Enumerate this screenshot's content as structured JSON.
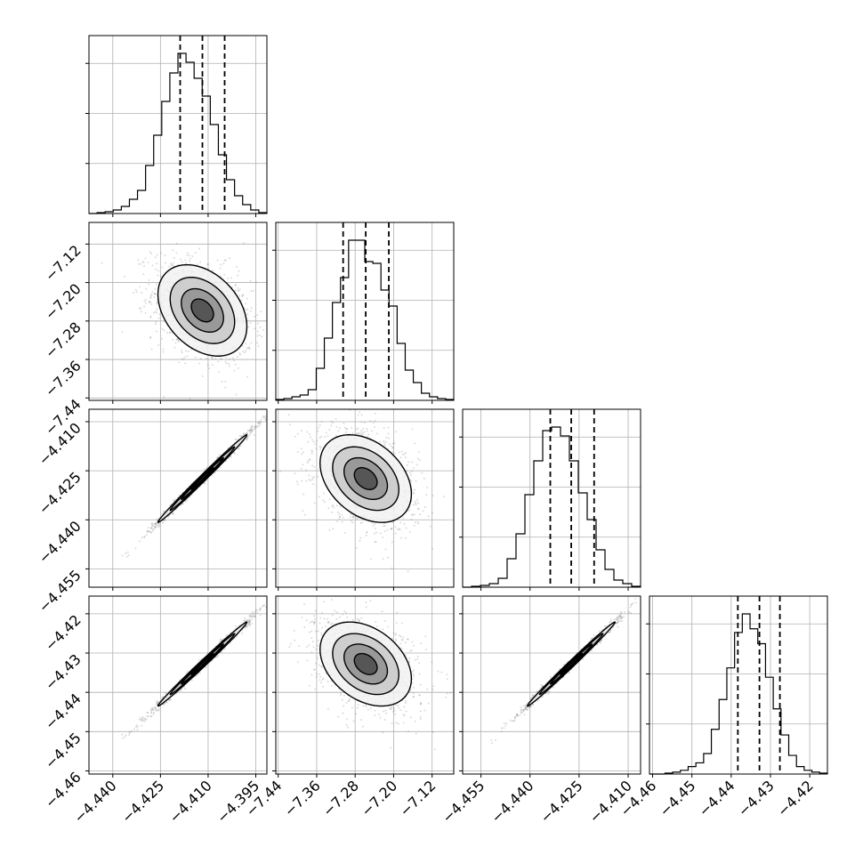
{
  "chart_data": {
    "type": "corner",
    "grid": true,
    "parameters": [
      {
        "ticks": [
          "−4.440",
          "−4.425",
          "−4.410",
          "−4.395"
        ],
        "tick_values": [
          -4.44,
          -4.425,
          -4.41,
          -4.395
        ],
        "range": [
          -4.4475,
          -4.3915
        ],
        "quantiles": [
          -4.4188,
          -4.4118,
          -4.4048
        ],
        "hist": [
          0,
          0.5,
          1,
          2,
          4,
          8,
          13,
          27,
          44,
          63,
          79,
          90,
          85,
          76,
          66,
          50,
          33,
          19,
          10,
          5,
          2,
          0.5
        ]
      },
      {
        "ticks": [
          "−7.44",
          "−7.36",
          "−7.28",
          "−7.20",
          "−7.12"
        ],
        "tick_values": [
          -7.44,
          -7.36,
          -7.28,
          -7.2,
          -7.12
        ],
        "range": [
          -7.445,
          -7.075
        ],
        "quantiles": [
          -7.305,
          -7.258,
          -7.21
        ],
        "hist": [
          0.5,
          1,
          2,
          3,
          6,
          18,
          35,
          55,
          69,
          90,
          90,
          78,
          77,
          62,
          53,
          32,
          17,
          10,
          4,
          2,
          1,
          0.5
        ]
      },
      {
        "ticks": [
          "−4.455",
          "−4.440",
          "−4.425",
          "−4.410"
        ],
        "tick_values": [
          -4.455,
          -4.44,
          -4.425,
          -4.41
        ],
        "range": [
          -4.4606,
          -4.4062
        ],
        "quantiles": [
          -4.4338,
          -4.4274,
          -4.4204
        ],
        "hist": [
          0,
          0.5,
          1,
          2,
          5,
          16,
          30,
          52,
          71,
          88,
          90,
          85,
          71,
          53,
          38,
          21,
          10,
          4,
          2,
          0.5
        ]
      },
      {
        "ticks": [
          "−4.46",
          "−4.45",
          "−4.44",
          "−4.43",
          "−4.42"
        ],
        "tick_values": [
          -4.46,
          -4.45,
          -4.44,
          -4.43,
          -4.42
        ],
        "range": [
          -4.4608,
          -4.4155
        ],
        "quantiles": [
          -4.4383,
          -4.4328,
          -4.4276
        ],
        "hist": [
          0,
          0,
          0.5,
          1,
          2,
          4,
          6,
          11,
          24,
          40,
          57,
          76,
          86,
          78,
          70,
          52,
          35,
          21,
          10,
          4,
          2,
          1,
          0.5
        ]
      }
    ],
    "pairs": [
      {
        "row": 1,
        "col": 0,
        "corr": -0.35
      },
      {
        "row": 2,
        "col": 0,
        "corr": 0.995
      },
      {
        "row": 2,
        "col": 1,
        "corr": -0.35
      },
      {
        "row": 3,
        "col": 0,
        "corr": 0.995
      },
      {
        "row": 3,
        "col": 1,
        "corr": -0.35
      },
      {
        "row": 3,
        "col": 2,
        "corr": 0.995
      }
    ]
  }
}
